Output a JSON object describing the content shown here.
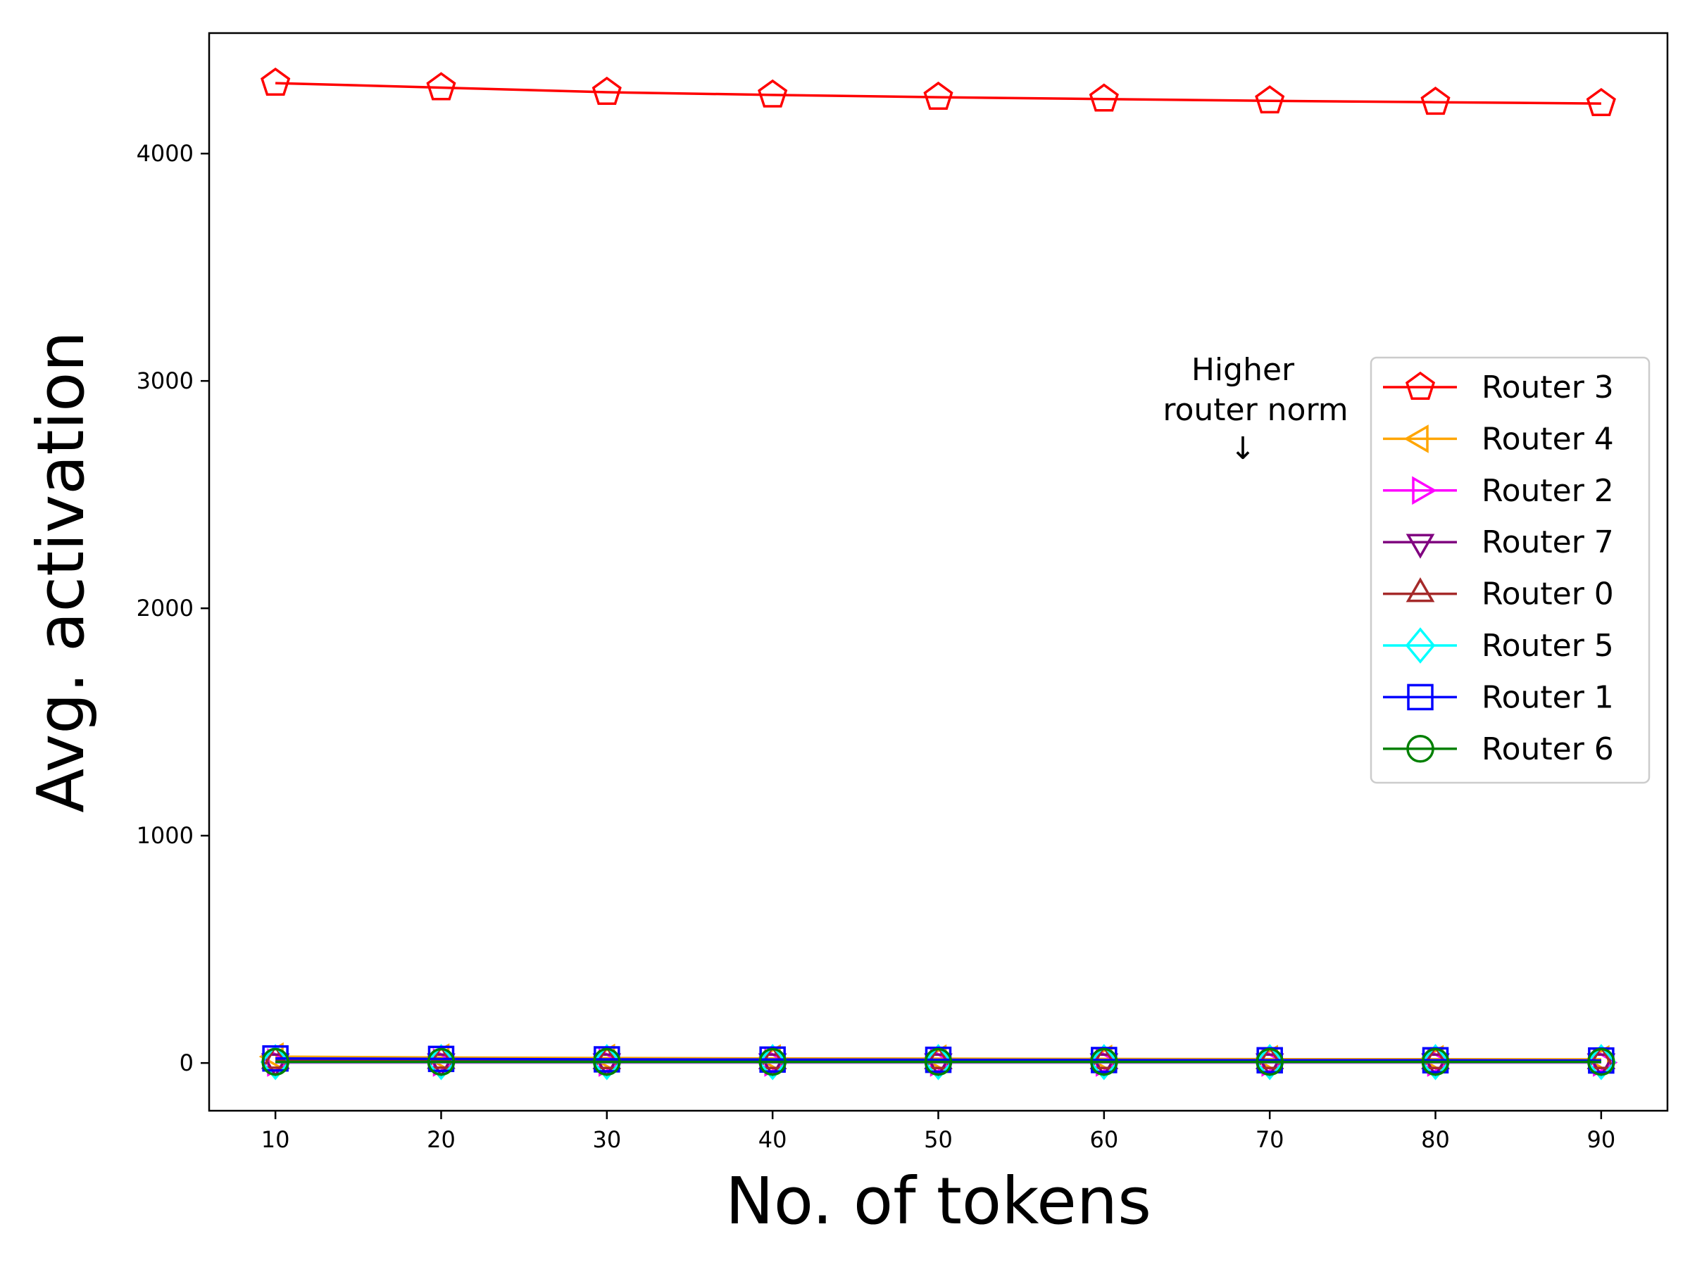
{
  "chart_data": {
    "type": "line",
    "title": "",
    "xlabel": "No. of tokens",
    "ylabel": "Avg. activation",
    "x": [
      10,
      20,
      30,
      40,
      50,
      60,
      70,
      80,
      90
    ],
    "xlim": [
      6,
      94
    ],
    "ylim": [
      -210,
      4530
    ],
    "xticks": [
      "10",
      "20",
      "30",
      "40",
      "50",
      "60",
      "70",
      "80",
      "90"
    ],
    "yticks": [
      "0",
      "1000",
      "2000",
      "3000",
      "4000"
    ],
    "grid": false,
    "legend_position": "right",
    "annotation": {
      "lines": [
        "Higher",
        "router norm"
      ],
      "arrow": "↓"
    },
    "series": [
      {
        "name": "Router 3",
        "color": "#ff0000",
        "marker": "pentagon",
        "values": [
          4310,
          4290,
          4270,
          4258,
          4248,
          4240,
          4232,
          4226,
          4220
        ]
      },
      {
        "name": "Router 4",
        "color": "#ffa500",
        "marker": "triangle-left",
        "values": [
          28,
          24,
          22,
          20,
          19,
          18,
          17,
          17,
          16
        ]
      },
      {
        "name": "Router 2",
        "color": "#ff00ff",
        "marker": "triangle-right",
        "values": [
          2,
          2,
          2,
          2,
          2,
          2,
          2,
          2,
          2
        ]
      },
      {
        "name": "Router 7",
        "color": "#800080",
        "marker": "triangle-down",
        "values": [
          6,
          6,
          6,
          6,
          6,
          6,
          6,
          6,
          6
        ]
      },
      {
        "name": "Router 0",
        "color": "#a52a2a",
        "marker": "triangle-up",
        "values": [
          10,
          10,
          9,
          9,
          9,
          9,
          9,
          9,
          9
        ]
      },
      {
        "name": "Router 5",
        "color": "#00ffff",
        "marker": "diamond",
        "values": [
          4,
          4,
          4,
          4,
          4,
          4,
          4,
          4,
          4
        ]
      },
      {
        "name": "Router 1",
        "color": "#0000ff",
        "marker": "square",
        "values": [
          20,
          18,
          16,
          15,
          14,
          13,
          12,
          12,
          11
        ]
      },
      {
        "name": "Router 6",
        "color": "#008000",
        "marker": "circle",
        "values": [
          5,
          5,
          5,
          5,
          5,
          5,
          5,
          5,
          5
        ]
      }
    ]
  }
}
